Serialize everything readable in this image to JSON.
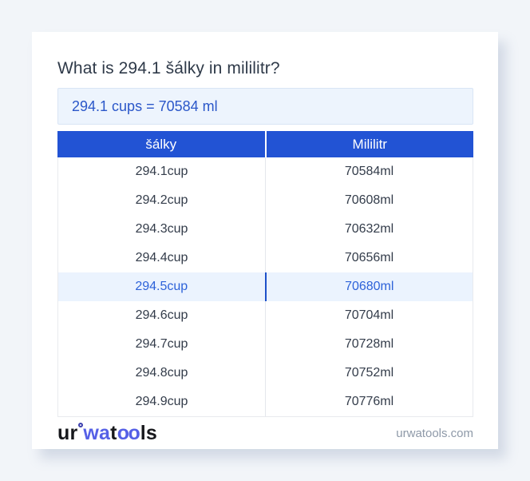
{
  "header": {
    "title": "What is 294.1 šálky in mililitr?"
  },
  "result_box": {
    "text": "294.1 cups = 70584 ml"
  },
  "table": {
    "headers": [
      "šálky",
      "Mililitr"
    ],
    "highlighted_index": 4,
    "rows": [
      {
        "cups": "294.1cup",
        "ml": "70584ml"
      },
      {
        "cups": "294.2cup",
        "ml": "70608ml"
      },
      {
        "cups": "294.3cup",
        "ml": "70632ml"
      },
      {
        "cups": "294.4cup",
        "ml": "70656ml"
      },
      {
        "cups": "294.5cup",
        "ml": "70680ml"
      },
      {
        "cups": "294.6cup",
        "ml": "70704ml"
      },
      {
        "cups": "294.7cup",
        "ml": "70728ml"
      },
      {
        "cups": "294.8cup",
        "ml": "70752ml"
      },
      {
        "cups": "294.9cup",
        "ml": "70776ml"
      }
    ]
  },
  "footer": {
    "logo": {
      "seg1": "ur",
      "seg2": "wa",
      "seg3": "t",
      "seg4": "oo",
      "seg5": "ls"
    },
    "domain": "urwatools.com"
  },
  "colors": {
    "page_bg": "#f2f5f9",
    "title_text": "#2f3a49",
    "result_bg": "#edf4fd",
    "result_border": "#d9e5f5",
    "result_text": "#2b57c9",
    "header_blue": "#2253d4",
    "table_border": "#e8eaee",
    "divider": "#e4e7ec",
    "row_text": "#333c4a",
    "highlight_bg": "#ebf3fe",
    "highlight_text": "#2d62d9",
    "highlight_divider": "#1d50c9",
    "logo_dark": "#17181c",
    "logo_accent": "#5560e6",
    "logo_ring": "#3c3fae",
    "domain_text": "#8e99a8"
  }
}
